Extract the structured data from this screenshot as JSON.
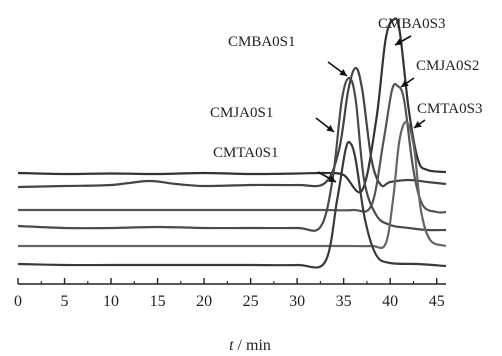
{
  "chart_data": {
    "type": "line",
    "xlabel_var": "t",
    "xlabel_unit": " / min",
    "xlim": [
      0,
      46
    ],
    "xticks": [
      0,
      5,
      10,
      15,
      20,
      25,
      30,
      35,
      40,
      45
    ],
    "grid": false,
    "series": [
      {
        "name": "CMBA0S3",
        "color": "#333333",
        "points": [
          [
            0,
            173
          ],
          [
            5,
            174
          ],
          [
            10,
            173.5
          ],
          [
            15,
            174
          ],
          [
            20,
            173
          ],
          [
            25,
            174
          ],
          [
            30,
            173.5
          ],
          [
            33,
            173
          ],
          [
            35,
            175
          ],
          [
            37,
            190
          ],
          [
            38.5,
            120
          ],
          [
            39.5,
            40
          ],
          [
            40.3,
            20
          ],
          [
            41,
            30
          ],
          [
            42,
            110
          ],
          [
            43,
            160
          ],
          [
            44,
            170
          ],
          [
            46,
            172
          ]
        ]
      },
      {
        "name": "CMBA0S1",
        "color": "#444444",
        "points": [
          [
            0,
            187
          ],
          [
            5,
            186
          ],
          [
            10,
            185
          ],
          [
            14,
            181
          ],
          [
            17,
            184
          ],
          [
            20,
            186
          ],
          [
            25,
            185
          ],
          [
            30,
            185
          ],
          [
            33,
            183
          ],
          [
            34.5,
            150
          ],
          [
            35.5,
            90
          ],
          [
            36.3,
            68
          ],
          [
            37,
            90
          ],
          [
            38,
            160
          ],
          [
            39,
            185
          ],
          [
            40,
            182
          ],
          [
            42,
            180
          ],
          [
            44,
            182
          ],
          [
            46,
            184
          ]
        ]
      },
      {
        "name": "CMJA0S2",
        "color": "#555555",
        "points": [
          [
            0,
            210
          ],
          [
            5,
            210
          ],
          [
            10,
            210
          ],
          [
            15,
            210
          ],
          [
            20,
            210
          ],
          [
            25,
            210
          ],
          [
            30,
            210
          ],
          [
            33,
            210
          ],
          [
            36,
            210
          ],
          [
            38,
            205
          ],
          [
            39.3,
            140
          ],
          [
            40.2,
            90
          ],
          [
            40.8,
            86
          ],
          [
            41.5,
            100
          ],
          [
            42.5,
            170
          ],
          [
            43.5,
            205
          ],
          [
            45,
            212
          ],
          [
            46,
            212
          ]
        ]
      },
      {
        "name": "CMJA0S1",
        "color": "#4a4a4a",
        "points": [
          [
            0,
            226
          ],
          [
            5,
            228
          ],
          [
            10,
            228
          ],
          [
            15,
            227
          ],
          [
            20,
            228
          ],
          [
            25,
            228
          ],
          [
            30,
            228
          ],
          [
            32.5,
            227
          ],
          [
            33.8,
            180
          ],
          [
            34.8,
            100
          ],
          [
            35.6,
            78
          ],
          [
            36.3,
            100
          ],
          [
            37.2,
            180
          ],
          [
            38.5,
            215
          ],
          [
            40,
            225
          ],
          [
            42,
            228
          ],
          [
            44,
            230
          ],
          [
            46,
            230
          ]
        ]
      },
      {
        "name": "CMTA0S3",
        "color": "#666666",
        "points": [
          [
            0,
            246
          ],
          [
            5,
            246
          ],
          [
            10,
            246
          ],
          [
            15,
            246
          ],
          [
            20,
            246
          ],
          [
            25,
            246
          ],
          [
            30,
            246
          ],
          [
            35,
            246
          ],
          [
            38,
            246
          ],
          [
            39.5,
            244
          ],
          [
            40.3,
            200
          ],
          [
            41,
            140
          ],
          [
            41.8,
            122
          ],
          [
            42.6,
            150
          ],
          [
            43.3,
            210
          ],
          [
            44.3,
            240
          ],
          [
            46,
            246
          ]
        ]
      },
      {
        "name": "CMTA0S1",
        "color": "#3a3a3a",
        "points": [
          [
            0,
            264
          ],
          [
            5,
            265
          ],
          [
            10,
            265
          ],
          [
            15,
            265
          ],
          [
            20,
            265
          ],
          [
            25,
            265
          ],
          [
            30,
            265
          ],
          [
            33,
            262
          ],
          [
            34.3,
            200
          ],
          [
            35.2,
            150
          ],
          [
            35.7,
            143
          ],
          [
            36.3,
            160
          ],
          [
            37.3,
            220
          ],
          [
            38.5,
            255
          ],
          [
            40,
            263
          ],
          [
            43,
            264
          ],
          [
            46,
            266
          ]
        ]
      }
    ],
    "annotations": [
      {
        "label": "CMBA0S3"
      },
      {
        "label": "CMBA0S1"
      },
      {
        "label": "CMJA0S2"
      },
      {
        "label": "CMJA0S1"
      },
      {
        "label": "CMTA0S3"
      },
      {
        "label": "CMTA0S1"
      }
    ]
  }
}
